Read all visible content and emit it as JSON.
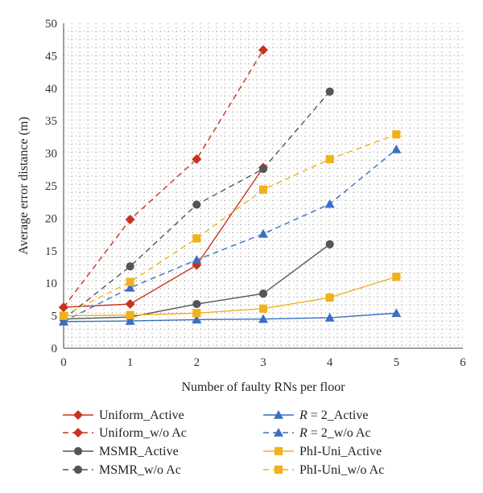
{
  "chart_data": {
    "type": "line",
    "xlabel": "Number of faulty RNs per floor",
    "ylabel": "Average error distance (m)",
    "xlim": [
      0,
      6
    ],
    "ylim": [
      0,
      50
    ],
    "x_ticks": [
      "0",
      "1",
      "2",
      "3",
      "4",
      "5",
      "6"
    ],
    "y_ticks": [
      "0",
      "5",
      "10",
      "15",
      "20",
      "25",
      "30",
      "35",
      "40",
      "45",
      "50"
    ],
    "grid": "dotted",
    "legend_placement": "bottom",
    "series": [
      {
        "name": "Uniform_Active",
        "label_parts": [
          {
            "t": "Uniform_Active",
            "i": false
          }
        ],
        "color": "#c8331f",
        "marker": "diamond",
        "dash": "solid",
        "x": [
          0,
          1,
          2,
          3
        ],
        "y": [
          6.3,
          6.8,
          12.8,
          27.8
        ]
      },
      {
        "name": "Uniform_w/o Ac",
        "label_parts": [
          {
            "t": "Uniform_w/o Ac",
            "i": false
          }
        ],
        "color": "#c8331f",
        "marker": "diamond",
        "dash": "dashed",
        "x": [
          0,
          1,
          2,
          3
        ],
        "y": [
          6.3,
          19.8,
          29.1,
          45.9
        ]
      },
      {
        "name": "MSMR_Active",
        "label_parts": [
          {
            "t": "MSMR_Active",
            "i": false
          }
        ],
        "color": "#555555",
        "marker": "circle",
        "dash": "solid",
        "x": [
          0,
          1,
          2,
          3,
          4
        ],
        "y": [
          4.5,
          4.8,
          6.8,
          8.4,
          16.0
        ]
      },
      {
        "name": "MSMR_w/o Ac",
        "label_parts": [
          {
            "t": "MSMR_w/o Ac",
            "i": false
          }
        ],
        "color": "#555555",
        "marker": "circle",
        "dash": "dashed",
        "x": [
          0,
          1,
          2,
          3,
          4
        ],
        "y": [
          4.5,
          12.6,
          22.1,
          27.6,
          39.5
        ]
      },
      {
        "name": "R = 2_Active",
        "label_parts": [
          {
            "t": "R",
            "i": true
          },
          {
            "t": " = 2_Active",
            "i": false
          }
        ],
        "color": "#3a6fc4",
        "marker": "triangle",
        "dash": "solid",
        "x": [
          0,
          1,
          2,
          3,
          4,
          5
        ],
        "y": [
          4.1,
          4.2,
          4.4,
          4.5,
          4.7,
          5.4
        ]
      },
      {
        "name": "R = 2_w/o Ac",
        "label_parts": [
          {
            "t": "R",
            "i": true
          },
          {
            "t": " = 2_w/o Ac",
            "i": false
          }
        ],
        "color": "#3a6fc4",
        "marker": "triangle",
        "dash": "dashed",
        "x": [
          0,
          1,
          2,
          3,
          4,
          5
        ],
        "y": [
          4.1,
          9.3,
          13.6,
          17.6,
          22.2,
          30.6
        ]
      },
      {
        "name": "PhI-Uni_Active",
        "label_parts": [
          {
            "t": "PhI-Uni_Active",
            "i": false
          }
        ],
        "color": "#f0b21c",
        "marker": "square",
        "dash": "solid",
        "x": [
          0,
          1,
          2,
          3,
          4,
          5
        ],
        "y": [
          5.0,
          5.1,
          5.4,
          6.1,
          7.8,
          11.0
        ]
      },
      {
        "name": "PhI-Uni_w/o Ac",
        "label_parts": [
          {
            "t": "PhI-Uni_w/o Ac",
            "i": false
          }
        ],
        "color": "#f0b21c",
        "marker": "square",
        "dash": "dashed",
        "x": [
          0,
          1,
          2,
          3,
          4,
          5
        ],
        "y": [
          5.0,
          10.2,
          16.9,
          24.4,
          29.1,
          32.9
        ]
      }
    ]
  }
}
